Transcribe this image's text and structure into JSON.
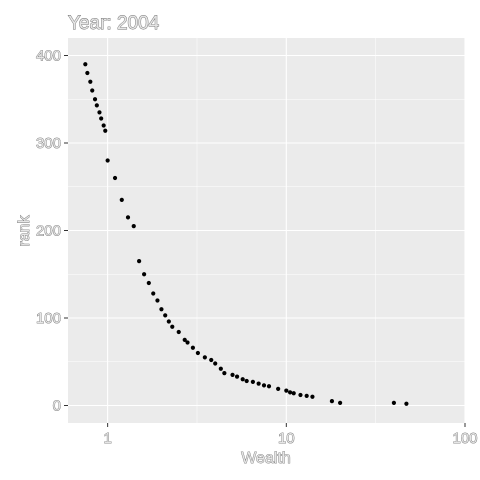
{
  "chart_data": {
    "type": "scatter",
    "title": "Year: 2004",
    "xlabel": "Wealth",
    "ylabel": "rank",
    "x_scale": "log10",
    "xlim": [
      0.6,
      100
    ],
    "ylim": [
      -20,
      420
    ],
    "x_ticks": [
      1,
      10,
      100
    ],
    "x_tick_labels": [
      "1",
      "10",
      "100"
    ],
    "y_ticks": [
      0,
      100,
      200,
      300,
      400
    ],
    "y_tick_labels": [
      "0",
      "100",
      "200",
      "300",
      "400"
    ],
    "grid": true,
    "legend": "none",
    "colors": {
      "panel": "#ebebeb",
      "grid": "#ffffff",
      "points": "#000000"
    },
    "points": [
      {
        "x": 0.75,
        "y": 390
      },
      {
        "x": 0.77,
        "y": 380
      },
      {
        "x": 0.8,
        "y": 370
      },
      {
        "x": 0.82,
        "y": 360
      },
      {
        "x": 0.85,
        "y": 350
      },
      {
        "x": 0.87,
        "y": 343
      },
      {
        "x": 0.9,
        "y": 335
      },
      {
        "x": 0.92,
        "y": 328
      },
      {
        "x": 0.95,
        "y": 320
      },
      {
        "x": 0.97,
        "y": 314
      },
      {
        "x": 1.0,
        "y": 280
      },
      {
        "x": 1.1,
        "y": 260
      },
      {
        "x": 1.2,
        "y": 235
      },
      {
        "x": 1.3,
        "y": 215
      },
      {
        "x": 1.4,
        "y": 205
      },
      {
        "x": 1.5,
        "y": 165
      },
      {
        "x": 1.6,
        "y": 150
      },
      {
        "x": 1.7,
        "y": 140
      },
      {
        "x": 1.8,
        "y": 128
      },
      {
        "x": 1.9,
        "y": 120
      },
      {
        "x": 2.0,
        "y": 110
      },
      {
        "x": 2.1,
        "y": 103
      },
      {
        "x": 2.2,
        "y": 96
      },
      {
        "x": 2.3,
        "y": 90
      },
      {
        "x": 2.5,
        "y": 84
      },
      {
        "x": 2.7,
        "y": 75
      },
      {
        "x": 2.8,
        "y": 72
      },
      {
        "x": 3.0,
        "y": 66
      },
      {
        "x": 3.2,
        "y": 60
      },
      {
        "x": 3.5,
        "y": 55
      },
      {
        "x": 3.8,
        "y": 52
      },
      {
        "x": 4.0,
        "y": 48
      },
      {
        "x": 4.3,
        "y": 42
      },
      {
        "x": 4.5,
        "y": 37
      },
      {
        "x": 5.0,
        "y": 35
      },
      {
        "x": 5.3,
        "y": 33
      },
      {
        "x": 5.7,
        "y": 30
      },
      {
        "x": 6.0,
        "y": 28
      },
      {
        "x": 6.5,
        "y": 27
      },
      {
        "x": 7.0,
        "y": 25
      },
      {
        "x": 7.5,
        "y": 23
      },
      {
        "x": 8.0,
        "y": 22
      },
      {
        "x": 9.0,
        "y": 19
      },
      {
        "x": 10.0,
        "y": 17
      },
      {
        "x": 10.5,
        "y": 15
      },
      {
        "x": 11.0,
        "y": 14
      },
      {
        "x": 12.0,
        "y": 12
      },
      {
        "x": 13.0,
        "y": 11
      },
      {
        "x": 14.0,
        "y": 10
      },
      {
        "x": 18.0,
        "y": 5
      },
      {
        "x": 20.0,
        "y": 3
      },
      {
        "x": 40.0,
        "y": 3
      },
      {
        "x": 47.0,
        "y": 2
      }
    ]
  }
}
